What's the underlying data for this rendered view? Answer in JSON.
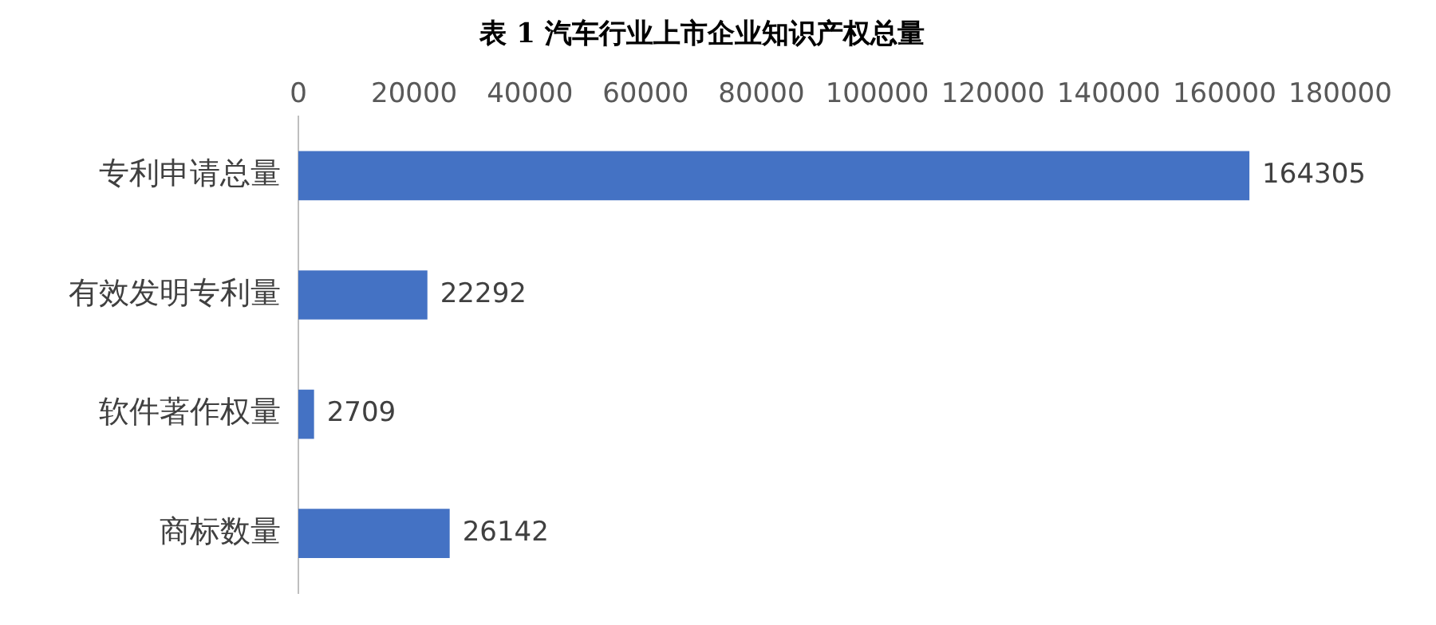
{
  "chart_data": {
    "type": "bar",
    "orientation": "horizontal",
    "title": "表 1 汽车行业上市企业知识产权总量",
    "categories": [
      "专利申请总量",
      "有效发明专利量",
      "软件著作权量",
      "商标数量"
    ],
    "values": [
      164305,
      22292,
      2709,
      26142
    ],
    "color": "#4472c4",
    "xlim": [
      0,
      180000
    ],
    "xticks": [
      0,
      20000,
      40000,
      60000,
      80000,
      100000,
      120000,
      140000,
      160000,
      180000
    ],
    "grid": false,
    "data_labels": true
  }
}
